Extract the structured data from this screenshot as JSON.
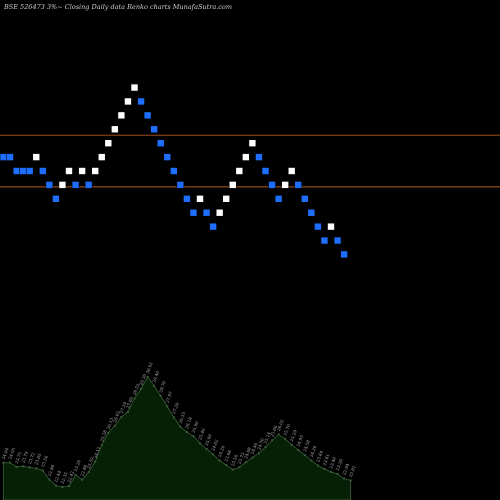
{
  "chart_data": {
    "type": "renko",
    "title": "BSE 526473 3%~   Closing Daily data  Renko  charts MunafaSutra.com",
    "colors": {
      "background": "#000000",
      "up_brick": "#ffffff",
      "down_brick": "#1e6fff",
      "brick_border": "#000000",
      "level_line": "#b35a1f",
      "volume_fill": "#062006",
      "volume_line": "#3b5d3b",
      "volume_label": "#b9b9b9"
    },
    "level_lines": [
      22.2,
      24.8
    ],
    "ylim": [
      15.5,
      30.6
    ],
    "bricks": [
      {
        "value": 23.7,
        "dir": "down"
      },
      {
        "value": 23.7,
        "dir": "down"
      },
      {
        "value": 23.0,
        "dir": "down"
      },
      {
        "value": 23.0,
        "dir": "down"
      },
      {
        "value": 23.0,
        "dir": "down"
      },
      {
        "value": 23.7,
        "dir": "up"
      },
      {
        "value": 23.0,
        "dir": "down"
      },
      {
        "value": 22.3,
        "dir": "down"
      },
      {
        "value": 21.6,
        "dir": "down"
      },
      {
        "value": 22.3,
        "dir": "up"
      },
      {
        "value": 23.0,
        "dir": "up"
      },
      {
        "value": 22.3,
        "dir": "down"
      },
      {
        "value": 23.0,
        "dir": "up"
      },
      {
        "value": 22.3,
        "dir": "down"
      },
      {
        "value": 23.0,
        "dir": "up"
      },
      {
        "value": 23.7,
        "dir": "up"
      },
      {
        "value": 24.4,
        "dir": "up"
      },
      {
        "value": 25.1,
        "dir": "up"
      },
      {
        "value": 25.8,
        "dir": "up"
      },
      {
        "value": 26.5,
        "dir": "up"
      },
      {
        "value": 27.2,
        "dir": "up"
      },
      {
        "value": 26.5,
        "dir": "down"
      },
      {
        "value": 25.8,
        "dir": "down"
      },
      {
        "value": 25.1,
        "dir": "down"
      },
      {
        "value": 24.4,
        "dir": "down"
      },
      {
        "value": 23.7,
        "dir": "down"
      },
      {
        "value": 23.0,
        "dir": "down"
      },
      {
        "value": 22.3,
        "dir": "down"
      },
      {
        "value": 21.6,
        "dir": "down"
      },
      {
        "value": 20.9,
        "dir": "down"
      },
      {
        "value": 21.6,
        "dir": "up"
      },
      {
        "value": 20.9,
        "dir": "down"
      },
      {
        "value": 20.2,
        "dir": "down"
      },
      {
        "value": 20.9,
        "dir": "up"
      },
      {
        "value": 21.6,
        "dir": "up"
      },
      {
        "value": 22.3,
        "dir": "up"
      },
      {
        "value": 23.0,
        "dir": "up"
      },
      {
        "value": 23.7,
        "dir": "up"
      },
      {
        "value": 24.4,
        "dir": "up"
      },
      {
        "value": 23.7,
        "dir": "down"
      },
      {
        "value": 23.0,
        "dir": "down"
      },
      {
        "value": 22.3,
        "dir": "down"
      },
      {
        "value": 21.6,
        "dir": "down"
      },
      {
        "value": 22.3,
        "dir": "up"
      },
      {
        "value": 23.0,
        "dir": "up"
      },
      {
        "value": 22.3,
        "dir": "down"
      },
      {
        "value": 21.6,
        "dir": "down"
      },
      {
        "value": 20.9,
        "dir": "down"
      },
      {
        "value": 20.2,
        "dir": "down"
      },
      {
        "value": 19.5,
        "dir": "down"
      },
      {
        "value": 20.2,
        "dir": "up"
      },
      {
        "value": 19.5,
        "dir": "down"
      },
      {
        "value": 18.8,
        "dir": "down"
      }
    ],
    "volume_values": [
      24.04,
      24.05,
      23.75,
      23.79,
      23.72,
      23.65,
      23.5,
      22.86,
      22.44,
      22.35,
      22.42,
      23.2,
      22.86,
      23.39,
      24.12,
      25.28,
      26.13,
      26.62,
      27.24,
      27.6,
      28.52,
      29.2,
      30.02,
      29.4,
      28.7,
      27.97,
      27.2,
      26.55,
      26.18,
      25.9,
      25.4,
      25.0,
      24.62,
      24.2,
      23.88,
      23.56,
      23.72,
      24.08,
      24.4,
      24.7,
      25.14,
      25.6,
      26.02,
      25.7,
      25.29,
      24.93,
      24.58,
      24.2,
      23.84,
      23.61,
      23.4,
      23.26,
      22.94,
      22.81
    ],
    "volume_labels": [
      "24.04",
      "24.05",
      "23.75",
      "23.79",
      "23.72",
      "23.65",
      "23.50",
      "22.86",
      "22.44",
      "22.35",
      "22.42",
      "23.20",
      "22.86",
      "23.39",
      "24.12",
      "25.28",
      "26.13",
      "26.62",
      "27.24",
      "27.60",
      "28.52",
      "29.20",
      "30.02",
      "29.40",
      "28.70",
      "27.97",
      "27.20",
      "26.55",
      "26.18",
      "25.90",
      "25.40",
      "25.00",
      "24.62",
      "24.20",
      "23.88",
      "23.56",
      "23.72",
      "24.08",
      "24.40",
      "24.70",
      "25.14",
      "25.60",
      "26.02",
      "25.70",
      "25.29",
      "24.93",
      "24.58",
      "24.20",
      "23.84",
      "23.61",
      "23.40",
      "23.26",
      "22.94",
      "22.81"
    ]
  }
}
